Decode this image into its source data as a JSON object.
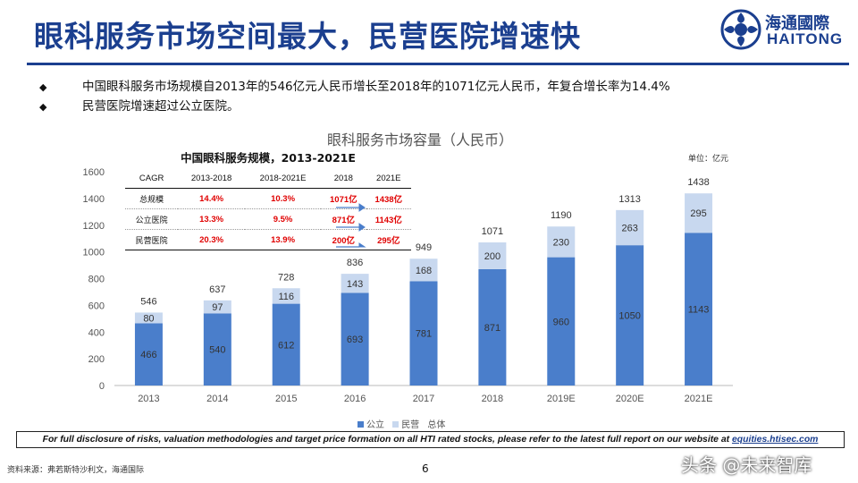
{
  "header": {
    "title": "眼科服务市场空间最大，民营医院增速快",
    "logo_cn": "海通國際",
    "logo_en": "HAITONG"
  },
  "bullets": [
    "中国眼科服务市场规模自2013年的546亿元人民币增长至2018年的1071亿元人民币，年复合增长率为14.4%",
    "民营医院增速超过公立医院。"
  ],
  "bullet_mark": "◆",
  "colors": {
    "brand": "#1b3f8f",
    "public": "#4a7ecb",
    "private": "#c8d8ef",
    "highlight": "#e00000"
  },
  "cagr_table": {
    "title": "中国眼科服务规模，2013-2021E",
    "headers": [
      "CAGR",
      "2013-2018",
      "2018-2021E",
      "2018",
      "2021E"
    ],
    "rows": [
      {
        "label": "总规模",
        "c1": "14.4%",
        "c2": "10.3%",
        "v2018": "1071亿",
        "v2021": "1438亿"
      },
      {
        "label": "公立医院",
        "c1": "13.3%",
        "c2": "9.5%",
        "v2018": "871亿",
        "v2021": "1143亿"
      },
      {
        "label": "民营医院",
        "c1": "20.3%",
        "c2": "13.9%",
        "v2018": "200亿",
        "v2021": "295亿"
      }
    ]
  },
  "chart_data": {
    "type": "bar",
    "stacked": true,
    "title": "眼科服务市场容量（人民币）",
    "unit_label": "单位：亿元",
    "categories": [
      "2013",
      "2014",
      "2015",
      "2016",
      "2017",
      "2018",
      "2019E",
      "2020E",
      "2021E"
    ],
    "series": [
      {
        "name": "公立",
        "values": [
          466,
          540,
          612,
          693,
          781,
          871,
          960,
          1050,
          1143
        ]
      },
      {
        "name": "民营",
        "values": [
          80,
          97,
          116,
          143,
          168,
          200,
          230,
          263,
          295
        ]
      }
    ],
    "totals": [
      546,
      637,
      728,
      836,
      949,
      1071,
      1190,
      1313,
      1438
    ],
    "total_legend": "总体",
    "ylim": [
      0,
      1600
    ],
    "yticks": [
      0,
      200,
      400,
      600,
      800,
      1000,
      1200,
      1400,
      1600
    ],
    "grid": false,
    "legend_position": "bottom"
  },
  "footer": {
    "disclaimer": "For full disclosure of risks, valuation methodologies and target price formation on all HTI rated stocks, please refer to the latest full report on our website at",
    "disclaimer_link": "equities.htisec.com",
    "source": "资料来源：弗若斯特沙利文，海通国际",
    "page": "6",
    "watermark": "头条 @未来智库"
  }
}
